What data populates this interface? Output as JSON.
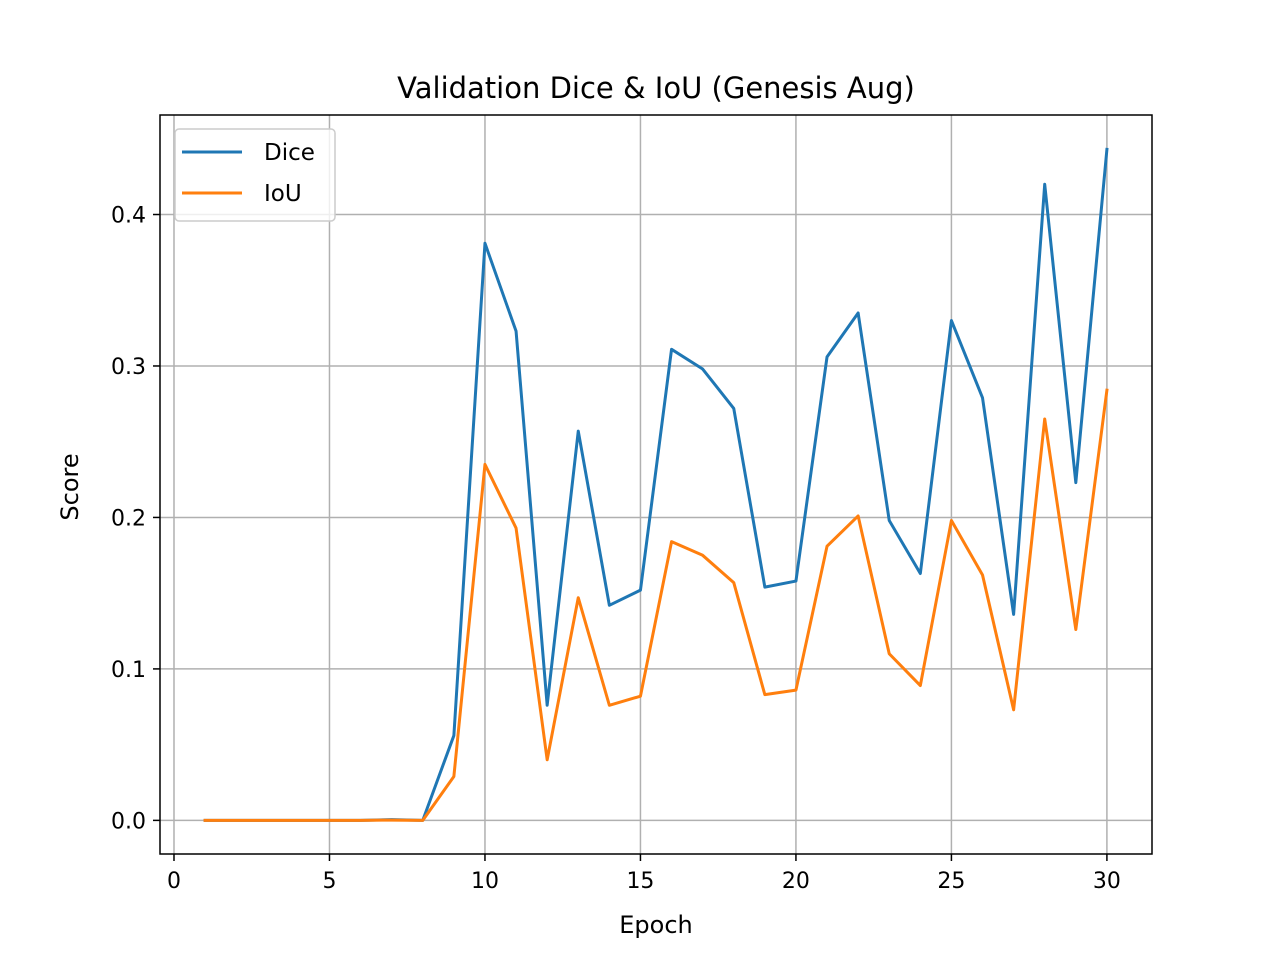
{
  "chart_data": {
    "type": "line",
    "title": "Validation Dice & IoU (Genesis Aug)",
    "xlabel": "Epoch",
    "ylabel": "Score",
    "xlim": [
      -0.45,
      31.45
    ],
    "ylim": [
      -0.0222,
      0.4657
    ],
    "xticks": [
      0,
      5,
      10,
      15,
      20,
      25,
      30
    ],
    "xtick_labels": [
      "0",
      "5",
      "10",
      "15",
      "20",
      "25",
      "30"
    ],
    "yticks": [
      0.0,
      0.1,
      0.2,
      0.3,
      0.4
    ],
    "ytick_labels": [
      "0.0",
      "0.1",
      "0.2",
      "0.3",
      "0.4"
    ],
    "grid": true,
    "legend_position": "top-left",
    "x": [
      1,
      2,
      3,
      4,
      5,
      6,
      7,
      8,
      9,
      10,
      11,
      12,
      13,
      14,
      15,
      16,
      17,
      18,
      19,
      20,
      21,
      22,
      23,
      24,
      25,
      26,
      27,
      28,
      29,
      30
    ],
    "series": [
      {
        "name": "Dice",
        "color": "#1f77b4",
        "values": [
          0.0,
          0.0,
          0.0,
          0.0,
          0.0,
          0.0,
          0.0005,
          0.0,
          0.056,
          0.381,
          0.323,
          0.076,
          0.257,
          0.142,
          0.152,
          0.311,
          0.298,
          0.272,
          0.154,
          0.158,
          0.306,
          0.335,
          0.198,
          0.163,
          0.33,
          0.279,
          0.136,
          0.42,
          0.223,
          0.443
        ]
      },
      {
        "name": "IoU",
        "color": "#ff7f0e",
        "values": [
          0.0,
          0.0,
          0.0,
          0.0,
          0.0,
          0.0,
          0.0002,
          0.0,
          0.029,
          0.235,
          0.193,
          0.04,
          0.147,
          0.076,
          0.082,
          0.184,
          0.175,
          0.157,
          0.083,
          0.086,
          0.181,
          0.201,
          0.11,
          0.089,
          0.198,
          0.162,
          0.073,
          0.265,
          0.126,
          0.284
        ]
      }
    ]
  }
}
